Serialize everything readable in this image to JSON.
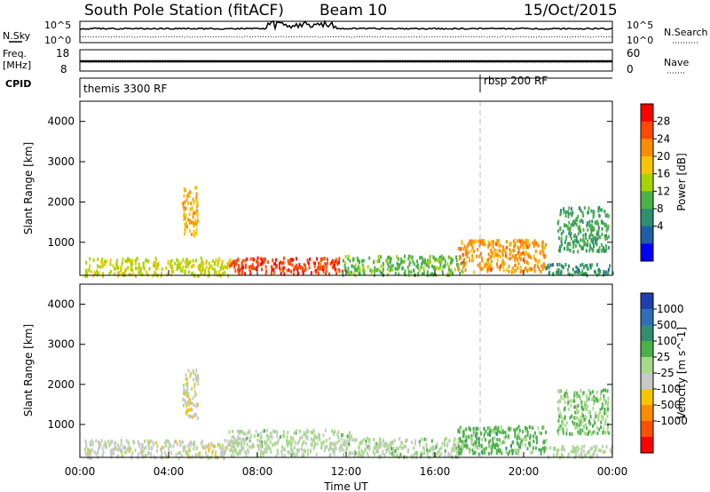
{
  "header": {
    "station": "South Pole Station (fitACF)",
    "beam": "Beam 10",
    "date": "15/Oct/2015"
  },
  "strip_panels": {
    "nsky_label": "N.Sky",
    "nsky_ticks": [
      "10^5",
      "10^0"
    ],
    "nsearch_label": "N.Search",
    "nsearch_ticks": [
      "10^5",
      "10^0"
    ],
    "freq_label": "Freq.",
    "freq_unit": "[MHz]",
    "freq_ticks": [
      "18",
      "8"
    ],
    "nave_label": "Nave",
    "nave_ticks": [
      "60",
      "0"
    ],
    "cpid_label": "CPID",
    "cpid_modes": [
      {
        "name": "themis 3300 RF",
        "start_hour": 0
      },
      {
        "name": "rbsp 200 RF",
        "start_hour": 18
      }
    ]
  },
  "power_colorbar": {
    "label": "Power [dB]",
    "ticks": [
      "28",
      "24",
      "20",
      "16",
      "12",
      "8",
      "4"
    ],
    "colors": [
      "#ff0000",
      "#ff4a00",
      "#ff8c00",
      "#f7c400",
      "#a8d400",
      "#4ab04a",
      "#2f8f6f",
      "#1f5fa8",
      "#0000ff"
    ]
  },
  "velocity_colorbar": {
    "label": "Velocity [m s^-1]",
    "ticks": [
      "1000",
      "500",
      "100",
      "25",
      "-25",
      "-100",
      "-500",
      "-1000"
    ],
    "colors": [
      "#1f3fb0",
      "#2f6fb8",
      "#2f8f6f",
      "#4ab04a",
      "#a8d98a",
      "#c8c8c8",
      "#f7c400",
      "#ff8c00",
      "#ff5000",
      "#ff0000"
    ]
  },
  "x_axis": {
    "label": "Time UT",
    "ticks": [
      "00:00",
      "04:00",
      "08:00",
      "12:00",
      "16:00",
      "20:00",
      "00:00"
    ]
  },
  "chart_data": [
    {
      "type": "heatmap",
      "title": "South Pole Station (fitACF) Beam 10",
      "xlabel": "Time UT",
      "ylabel": "Slant Range [km]",
      "xlim": [
        0,
        24
      ],
      "ylim": [
        180,
        4500
      ],
      "yticks": [
        1000,
        2000,
        3000,
        4000
      ],
      "quantity": "Power [dB]",
      "color_range": [
        0,
        30
      ],
      "regions": [
        {
          "t": [
            0.2,
            6.8
          ],
          "r": [
            200,
            650
          ],
          "value": 16
        },
        {
          "t": [
            6.7,
            11.8
          ],
          "r": [
            250,
            650
          ],
          "value": 27
        },
        {
          "t": [
            11.8,
            17.3
          ],
          "r": [
            220,
            700
          ],
          "value": 12
        },
        {
          "t": [
            17.0,
            21.0
          ],
          "r": [
            300,
            1100
          ],
          "value": 22
        },
        {
          "t": [
            21.0,
            24.0
          ],
          "r": [
            220,
            500
          ],
          "value": 8
        },
        {
          "t": [
            4.6,
            5.3
          ],
          "r": [
            1200,
            2400
          ],
          "value": 20
        },
        {
          "t": [
            21.5,
            23.8
          ],
          "r": [
            800,
            1900
          ],
          "value": 10
        }
      ]
    },
    {
      "type": "heatmap",
      "title": "",
      "xlabel": "Time UT",
      "ylabel": "Slant Range [km]",
      "xlim": [
        0,
        24
      ],
      "ylim": [
        180,
        4500
      ],
      "yticks": [
        1000,
        2000,
        3000,
        4000
      ],
      "quantity": "Velocity [m s^-1]",
      "color_range": [
        -1000,
        1000
      ],
      "regions": [
        {
          "t": [
            0.2,
            6.8
          ],
          "r": [
            200,
            650
          ],
          "value": -80
        },
        {
          "t": [
            6.7,
            12.2
          ],
          "r": [
            250,
            900
          ],
          "value": 60
        },
        {
          "t": [
            12.2,
            17.3
          ],
          "r": [
            220,
            700
          ],
          "value": 80
        },
        {
          "t": [
            17.0,
            21.0
          ],
          "r": [
            300,
            1000
          ],
          "value": 300
        },
        {
          "t": [
            21.0,
            24.0
          ],
          "r": [
            220,
            500
          ],
          "value": 30
        },
        {
          "t": [
            4.6,
            5.3
          ],
          "r": [
            1200,
            2400
          ],
          "value": -120
        },
        {
          "t": [
            21.5,
            23.8
          ],
          "r": [
            800,
            1900
          ],
          "value": 200
        }
      ]
    }
  ]
}
